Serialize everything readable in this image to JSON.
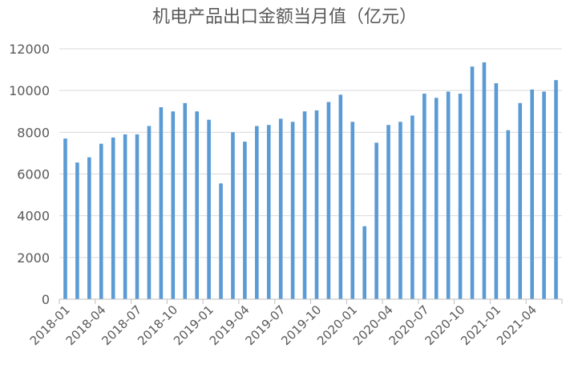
{
  "chart_data": {
    "type": "bar",
    "title": "机电产品出口金额当月值（亿元）",
    "xlabel": "",
    "ylabel": "",
    "ylim": [
      0,
      12000
    ],
    "yticks": [
      "0",
      "2000",
      "4000",
      "6000",
      "8000",
      "10000",
      "12000"
    ],
    "xtick_labels": [
      "2018-01",
      "2018-04",
      "2018-07",
      "2018-10",
      "2019-01",
      "2019-04",
      "2019-07",
      "2019-10",
      "2020-01",
      "2020-04",
      "2020-07",
      "2020-10",
      "2021-01",
      "2021-04"
    ],
    "grid": true,
    "legend": "none",
    "bar_color": "#5B9BD5",
    "categories": [
      "2018-01",
      "2018-02",
      "2018-03",
      "2018-04",
      "2018-05",
      "2018-06",
      "2018-07",
      "2018-08",
      "2018-09",
      "2018-10",
      "2018-11",
      "2018-12",
      "2019-01",
      "2019-02",
      "2019-03",
      "2019-04",
      "2019-05",
      "2019-06",
      "2019-07",
      "2019-08",
      "2019-09",
      "2019-10",
      "2019-11",
      "2019-12",
      "2020-01",
      "2020-02",
      "2020-03",
      "2020-04",
      "2020-05",
      "2020-06",
      "2020-07",
      "2020-08",
      "2020-09",
      "2020-10",
      "2020-11",
      "2020-12",
      "2021-01",
      "2021-02",
      "2021-03",
      "2021-04",
      "2021-05",
      "2021-06"
    ],
    "values": [
      7700,
      6550,
      6800,
      7450,
      7750,
      7900,
      7900,
      8300,
      9200,
      9000,
      9400,
      9000,
      8600,
      5550,
      8000,
      7550,
      8300,
      8350,
      8650,
      8500,
      9000,
      9050,
      9450,
      9800,
      8500,
      3500,
      7500,
      8350,
      8500,
      8800,
      9850,
      9650,
      9950,
      9850,
      11150,
      11350,
      10350,
      8100,
      9400,
      10050,
      9950,
      10500
    ]
  }
}
